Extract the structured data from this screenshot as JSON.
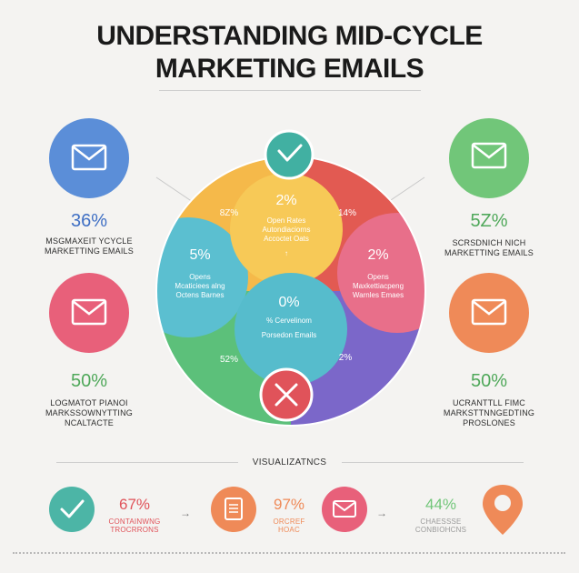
{
  "title": {
    "line1": "UNDERSTANDING MID-CYCLE",
    "line2": "MARKETING EMAILS"
  },
  "colors": {
    "blue": "#5b8ed8",
    "pink": "#e8607a",
    "green": "#71c679",
    "orange": "#ef8a58",
    "teal": "#4cb5a6",
    "red": "#e2525a",
    "yellow": "#f7c04c",
    "cyan": "#5ac0cf"
  },
  "left_cards": [
    {
      "icon": "envelope-icon",
      "pct": "36%",
      "label_lines": [
        "MSGMAXEIT YCYCLE",
        "MARKETTING EMAILS"
      ]
    },
    {
      "icon": "envelope-icon",
      "pct": "50%",
      "label_lines": [
        "LOGMATOT PIANOI",
        "MARKSSOWNYTTING",
        "NCALTACTE"
      ]
    }
  ],
  "right_cards": [
    {
      "icon": "envelope-icon",
      "pct": "5Z%",
      "label_lines": [
        "SCRSDNICH NICH",
        "MARKETTING EMAILS"
      ]
    },
    {
      "icon": "envelope-icon",
      "pct": "50%",
      "label_lines": [
        "UCRANTTLL FIMC",
        "MARKSTTNNGEDTING",
        "PROSLONES"
      ]
    }
  ],
  "wheel": {
    "top_icon": "check-icon",
    "bottom_icon": "close-icon",
    "yellow": {
      "pct": "2%",
      "lines": [
        "Open Rates",
        "Autondiaciorns",
        "Accoctet Oats"
      ],
      "arrow": "↑"
    },
    "cyan": {
      "pct": "5%",
      "lines": [
        "Opens",
        "Mcaticiees alng",
        "Octens Barnes"
      ]
    },
    "pink": {
      "pct": "2%",
      "lines": [
        "Opens",
        "Maxkettiacpeng",
        "Warnles Emaes"
      ]
    },
    "bottom": {
      "pct": "0%",
      "lines": [
        "% Cervelinom",
        "Porsedon Emails"
      ]
    },
    "outer_labels": {
      "tl": "8Z%",
      "tr": "14%",
      "bl": "52%",
      "br": "2%"
    }
  },
  "visualizations": {
    "title": "VISUALIZATNCS",
    "items": [
      {
        "icon": "check-icon",
        "pct": "67%",
        "label_lines": [
          "CONTAINWNG",
          "TROCRRONS"
        ]
      },
      {
        "icon": "document-icon",
        "pct": "97%",
        "label_lines": [
          "ORCREF",
          "HOAC"
        ]
      },
      {
        "icon": "envelope-icon",
        "pct": "44%",
        "label_lines": [
          "CHAESSSE",
          "CONBIOHCNS"
        ]
      },
      {
        "icon": "location-pin-icon"
      }
    ],
    "arrows": [
      "→",
      "→"
    ]
  }
}
